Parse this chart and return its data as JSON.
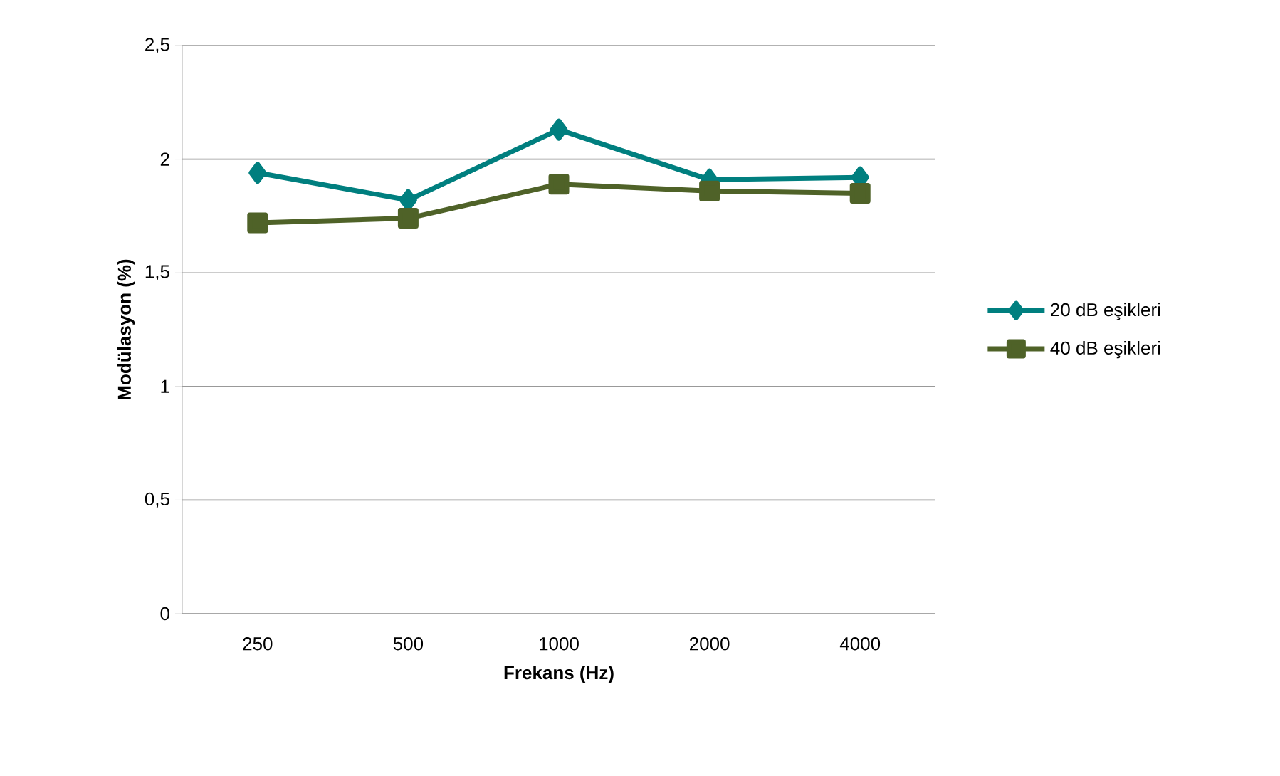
{
  "chart_data": {
    "type": "line",
    "xlabel": "Frekans (Hz)",
    "ylabel": "Modülasyon (%)",
    "categories": [
      "250",
      "500",
      "1000",
      "2000",
      "4000"
    ],
    "ylim": [
      0,
      2.5
    ],
    "yticks": [
      0,
      {
        "value": 0.5,
        "label": "0,5"
      },
      1,
      {
        "value": 1.5,
        "label": "1,5"
      },
      2,
      {
        "value": 2.5,
        "label": "2,5"
      }
    ],
    "grid": "y",
    "legend": "right",
    "series": [
      {
        "name": "20 dB eşikleri",
        "color": "#007f7f",
        "marker": "diamond",
        "values": [
          1.94,
          1.82,
          2.13,
          1.91,
          1.92
        ]
      },
      {
        "name": "40 dB eşikleri",
        "color": "#4f6228",
        "marker": "square",
        "values": [
          1.72,
          1.74,
          1.89,
          1.86,
          1.85
        ]
      }
    ]
  }
}
